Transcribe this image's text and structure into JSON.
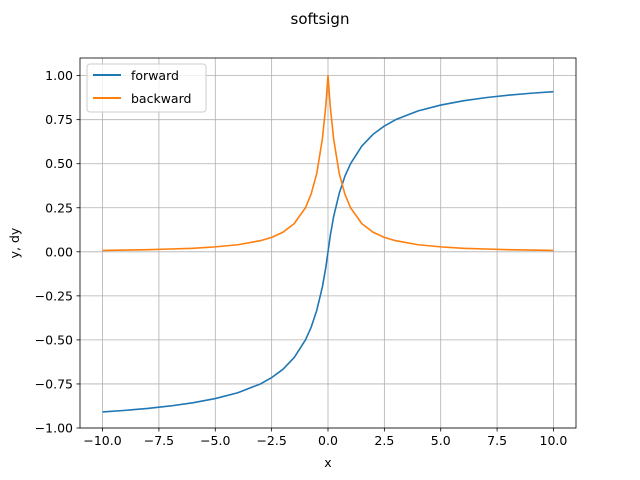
{
  "chart_data": {
    "type": "line",
    "title": "softsign",
    "xlabel": "x",
    "ylabel": "y, dy",
    "xlim": [
      -11.0,
      11.0
    ],
    "ylim": [
      -1.0,
      1.1
    ],
    "xticks": [
      -10.0,
      -7.5,
      -5.0,
      -2.5,
      0.0,
      2.5,
      5.0,
      7.5,
      10.0
    ],
    "xtick_labels": [
      "−10.0",
      "−7.5",
      "−5.0",
      "−2.5",
      "0.0",
      "2.5",
      "5.0",
      "7.5",
      "10.0"
    ],
    "yticks": [
      -1.0,
      -0.75,
      -0.5,
      -0.25,
      0.0,
      0.25,
      0.5,
      0.75,
      1.0
    ],
    "ytick_labels": [
      "−1.00",
      "−0.75",
      "−0.50",
      "−0.25",
      "0.00",
      "0.25",
      "0.50",
      "0.75",
      "1.00"
    ],
    "grid": true,
    "legend_position": "upper-left",
    "x": [
      -10,
      -9,
      -8,
      -7,
      -6,
      -5,
      -4,
      -3,
      -2.5,
      -2,
      -1.5,
      -1,
      -0.75,
      -0.5,
      -0.25,
      -0.1,
      0,
      0.1,
      0.25,
      0.5,
      0.75,
      1,
      1.5,
      2,
      2.5,
      3,
      4,
      5,
      6,
      7,
      8,
      9,
      10
    ],
    "series": [
      {
        "name": "forward",
        "color": "#1f77b4",
        "values": [
          -0.909,
          -0.9,
          -0.889,
          -0.875,
          -0.857,
          -0.833,
          -0.8,
          -0.75,
          -0.714,
          -0.667,
          -0.6,
          -0.5,
          -0.429,
          -0.333,
          -0.2,
          -0.091,
          0,
          0.091,
          0.2,
          0.333,
          0.429,
          0.5,
          0.6,
          0.667,
          0.714,
          0.75,
          0.8,
          0.833,
          0.857,
          0.875,
          0.889,
          0.9,
          0.909
        ]
      },
      {
        "name": "backward",
        "color": "#ff7f0e",
        "values": [
          0.008,
          0.01,
          0.012,
          0.016,
          0.02,
          0.028,
          0.04,
          0.063,
          0.082,
          0.111,
          0.16,
          0.25,
          0.327,
          0.444,
          0.64,
          0.826,
          1.0,
          0.826,
          0.64,
          0.444,
          0.327,
          0.25,
          0.16,
          0.111,
          0.082,
          0.063,
          0.04,
          0.028,
          0.02,
          0.016,
          0.012,
          0.01,
          0.008
        ]
      }
    ]
  }
}
